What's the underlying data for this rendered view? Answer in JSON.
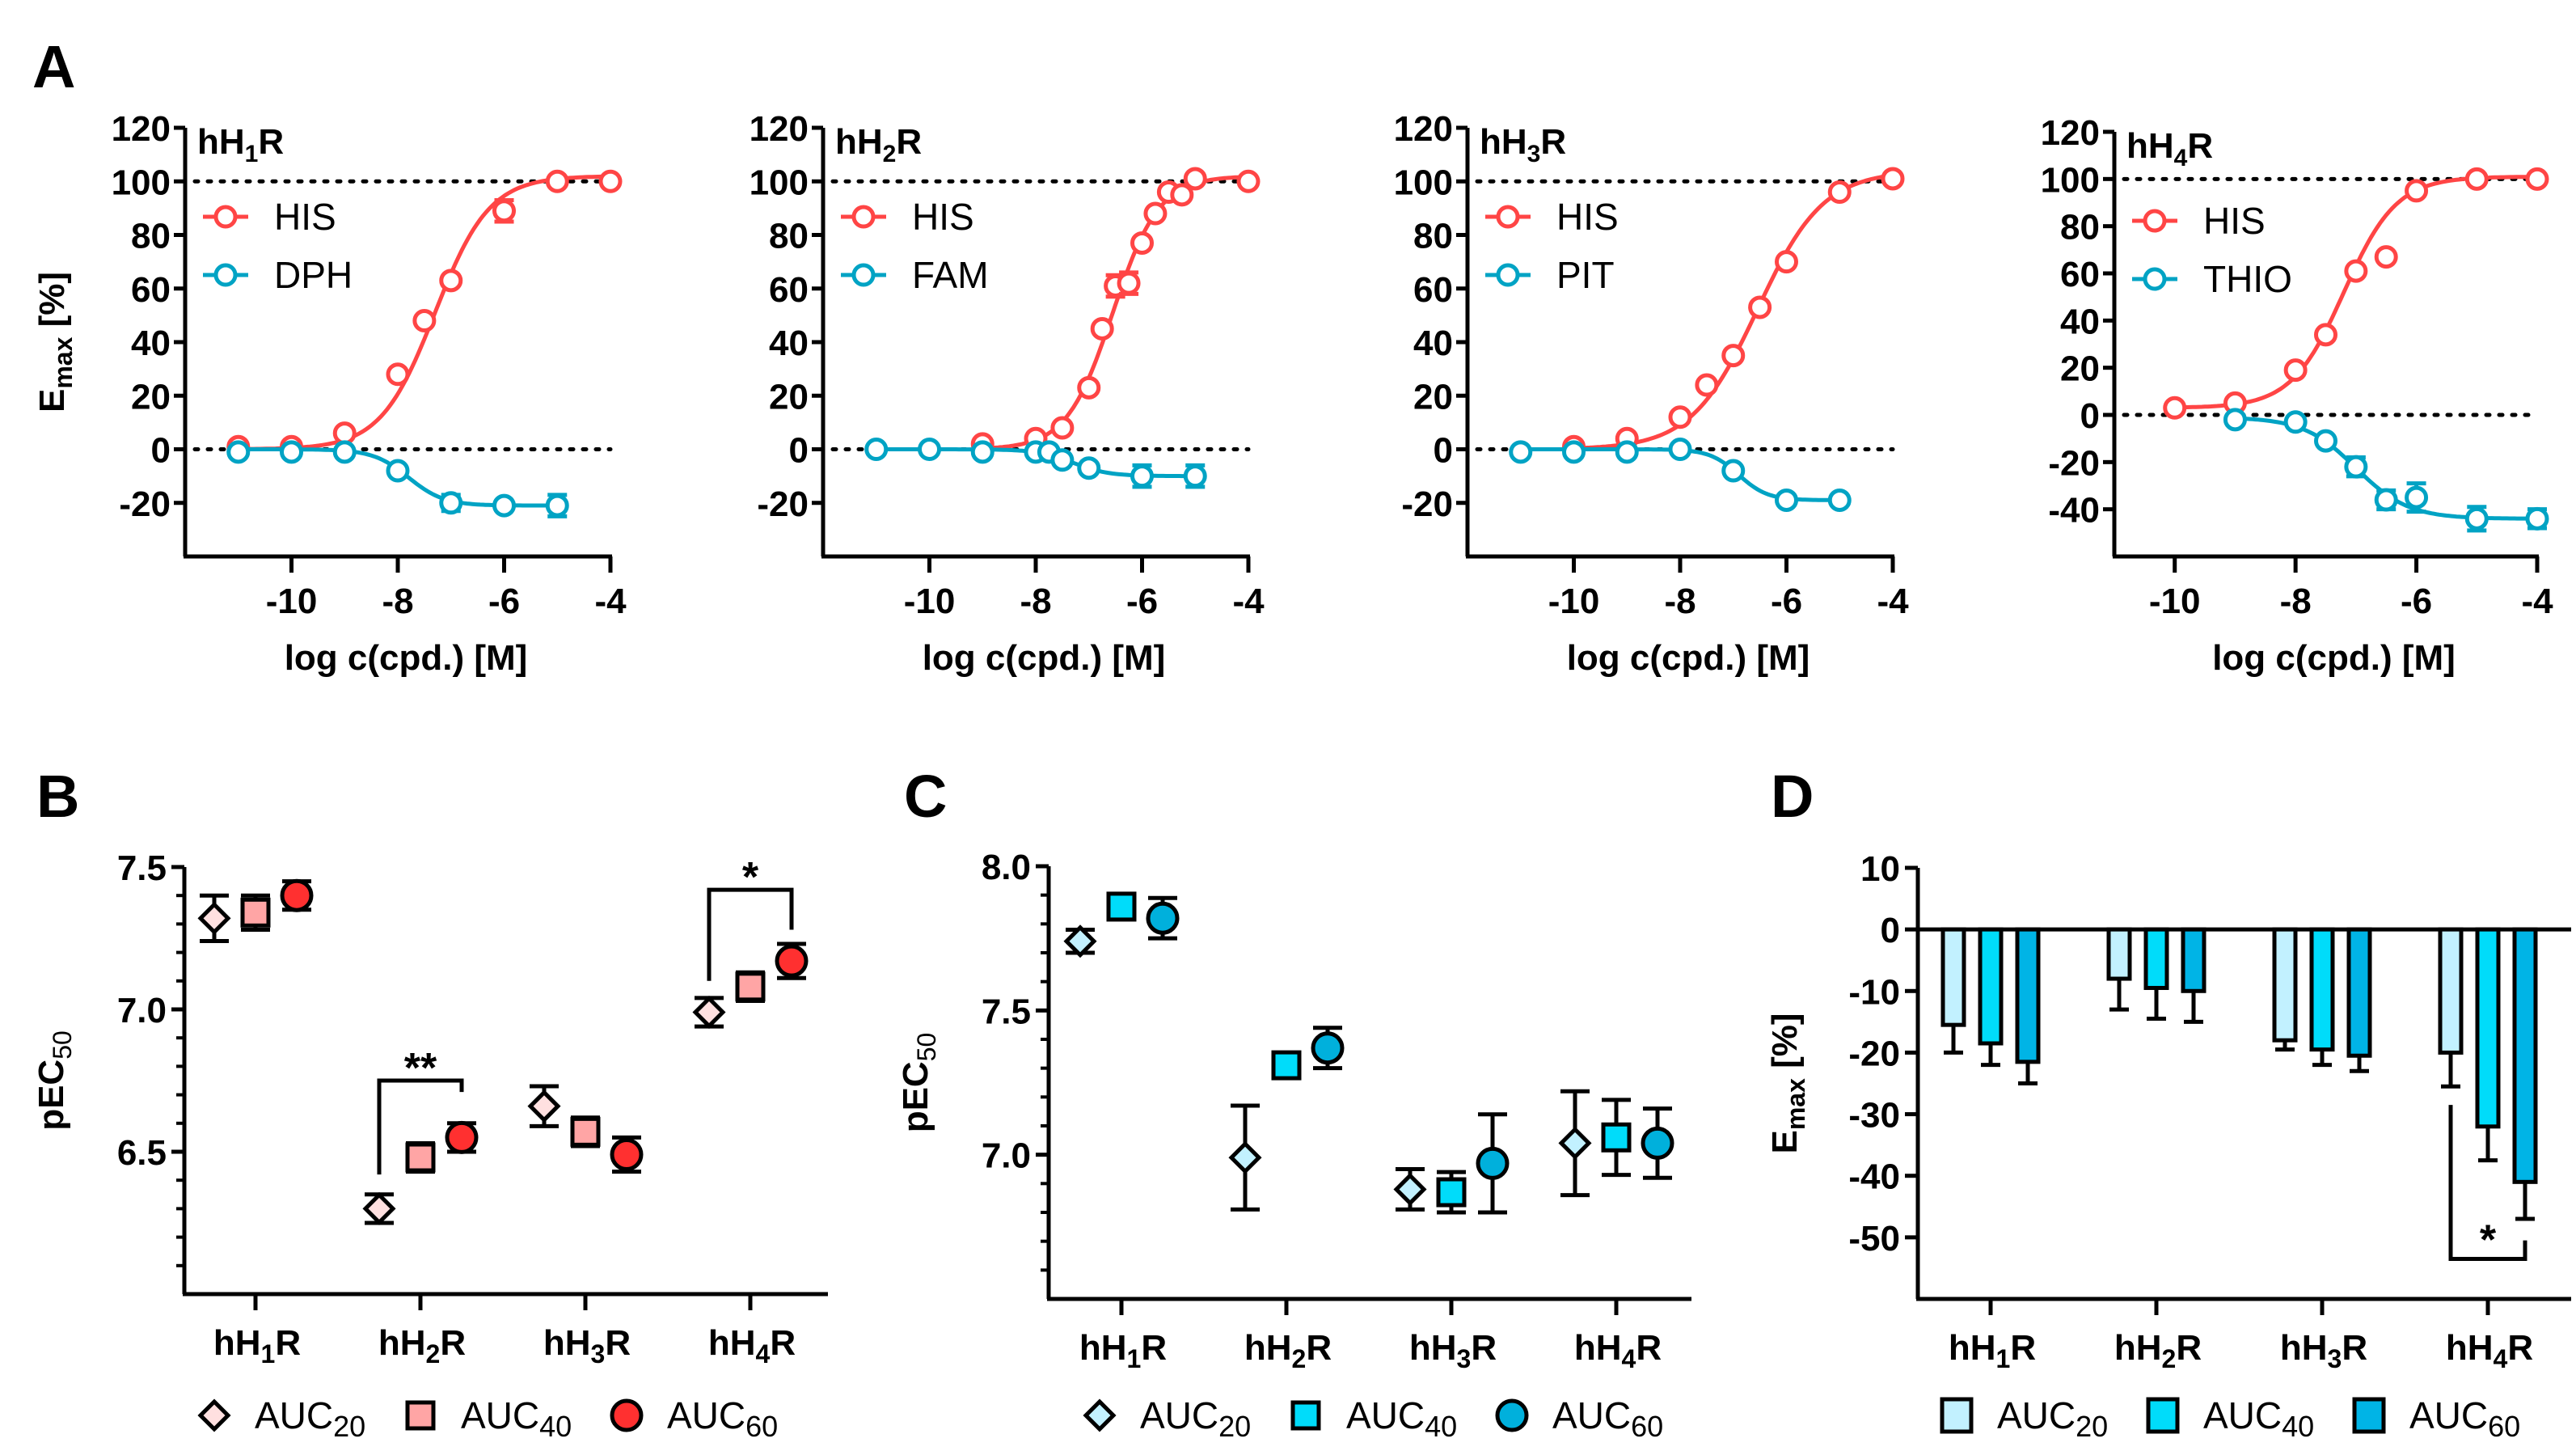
{
  "figure": {
    "panel_letters": [
      "A",
      "B",
      "C",
      "D"
    ]
  },
  "colors": {
    "agonist": "#ff4545",
    "ligand2": "#00a3c4",
    "B_auc20": "#ffe0e0",
    "B_auc40": "#ffa5a5",
    "B_auc60": "#ff3030",
    "C_auc20": "#c2f1ff",
    "C_auc40": "#00dcfa",
    "C_auc60": "#00b0dc",
    "D_auc20": "#c2f1ff",
    "D_auc40": "#00dcfa",
    "D_auc60": "#00b4e6"
  },
  "chart_data": [
    {
      "id": "A1",
      "type": "line",
      "panel": "A",
      "title": "hH1R",
      "title_sub": "1",
      "xlabel": "log c(cpd.) [M]",
      "ylabel": "Emax [%]",
      "xlim": [
        -12,
        -4
      ],
      "ylim": [
        -40,
        120
      ],
      "xticks": [
        -10,
        -8,
        -6,
        -4
      ],
      "yticks": [
        120,
        100,
        80,
        60,
        40,
        20,
        0,
        -20
      ],
      "reference_lines": [
        0,
        100
      ],
      "legend": "top-left",
      "series": [
        {
          "name": "HIS",
          "x": [
            -11,
            -10,
            -9,
            -8,
            -7.5,
            -7,
            -6,
            -5,
            -4
          ],
          "y": [
            1,
            1,
            6,
            28,
            48,
            63,
            89,
            100,
            100
          ],
          "err": [
            0,
            0,
            0,
            0,
            0,
            0,
            4,
            0,
            0
          ],
          "fit": {
            "bottom": 0,
            "top": 102,
            "logec50": -7.3,
            "hill": 0.85
          }
        },
        {
          "name": "DPH",
          "x": [
            -11,
            -10,
            -9,
            -8,
            -7,
            -6,
            -5
          ],
          "y": [
            -1,
            -1,
            -1,
            -8,
            -20,
            -21,
            -21
          ],
          "err": [
            0,
            0,
            0,
            0,
            3,
            0,
            4
          ],
          "fit": {
            "bottom": 0,
            "top": -21,
            "logec50": -7.8,
            "hill": 1.3
          }
        }
      ]
    },
    {
      "id": "A2",
      "type": "line",
      "panel": "A",
      "title": "hH2R",
      "title_sub": "2",
      "xlabel": "log c(cpd.) [M]",
      "ylabel": "",
      "xlim": [
        -12,
        -4
      ],
      "ylim": [
        -40,
        120
      ],
      "xticks": [
        -10,
        -8,
        -6,
        -4
      ],
      "yticks": [
        120,
        100,
        80,
        60,
        40,
        20,
        0,
        -20
      ],
      "reference_lines": [
        0,
        100
      ],
      "legend": "top-left",
      "series": [
        {
          "name": "HIS",
          "x": [
            -9,
            -8,
            -7.5,
            -7,
            -6.75,
            -6.5,
            -6.25,
            -6,
            -5.75,
            -5.5,
            -5.25,
            -5,
            -4
          ],
          "y": [
            2,
            4,
            8,
            23,
            45,
            61,
            62,
            77,
            88,
            96,
            95,
            101,
            100
          ],
          "err": [
            0,
            0,
            0,
            0,
            0,
            4,
            4,
            0,
            0,
            0,
            0,
            0,
            0
          ],
          "fit": {
            "bottom": 0,
            "top": 102,
            "logec50": -6.55,
            "hill": 1.0
          }
        },
        {
          "name": "FAM",
          "x": [
            -11,
            -10,
            -9,
            -8,
            -7.75,
            -7.5,
            -7,
            -6,
            -5
          ],
          "y": [
            0,
            0,
            -1,
            -1,
            -1,
            -4,
            -7,
            -10,
            -10
          ],
          "err": [
            0,
            0,
            0,
            0,
            0,
            0,
            0,
            4,
            4
          ],
          "fit": {
            "bottom": 0,
            "top": -10,
            "logec50": -7.3,
            "hill": 1.3
          }
        }
      ]
    },
    {
      "id": "A3",
      "type": "line",
      "panel": "A",
      "title": "hH3R",
      "title_sub": "3",
      "xlabel": "log c(cpd.) [M]",
      "ylabel": "",
      "xlim": [
        -12,
        -4
      ],
      "ylim": [
        -40,
        120
      ],
      "xticks": [
        -10,
        -8,
        -6,
        -4
      ],
      "yticks": [
        120,
        100,
        80,
        60,
        40,
        20,
        0,
        -20
      ],
      "reference_lines": [
        0,
        100
      ],
      "legend": "top-left",
      "series": [
        {
          "name": "HIS",
          "x": [
            -10,
            -9,
            -8,
            -7.5,
            -7,
            -6.5,
            -6,
            -5,
            -4
          ],
          "y": [
            1,
            4,
            12,
            24,
            35,
            53,
            70,
            96,
            101
          ],
          "err": [
            0,
            0,
            0,
            0,
            0,
            0,
            0,
            0,
            0
          ],
          "fit": {
            "bottom": 0,
            "top": 104,
            "logec50": -6.55,
            "hill": 0.7
          }
        },
        {
          "name": "PIT",
          "x": [
            -11,
            -10,
            -9,
            -8,
            -7,
            -6,
            -5
          ],
          "y": [
            -1,
            -1,
            -1,
            0,
            -8,
            -19,
            -19
          ],
          "err": [
            0,
            0,
            0,
            0,
            0,
            0,
            0
          ],
          "fit": {
            "bottom": 0,
            "top": -19,
            "logec50": -6.9,
            "hill": 1.6
          }
        }
      ]
    },
    {
      "id": "A4",
      "type": "line",
      "panel": "A",
      "title": "hH4R",
      "title_sub": "4",
      "xlabel": "log c(cpd.) [M]",
      "ylabel": "",
      "xlim": [
        -11,
        -4
      ],
      "ylim": [
        -60,
        120
      ],
      "xticks": [
        -10,
        -8,
        -6,
        -4
      ],
      "yticks": [
        120,
        100,
        80,
        60,
        40,
        20,
        0,
        -20,
        -40
      ],
      "reference_lines": [
        0,
        100
      ],
      "legend": "top-left",
      "series": [
        {
          "name": "HIS",
          "x": [
            -10,
            -9,
            -8,
            -7.5,
            -7,
            -6.5,
            -6,
            -5,
            -4
          ],
          "y": [
            3,
            5,
            19,
            34,
            61,
            67,
            95,
            100,
            100
          ],
          "err": [
            0,
            0,
            0,
            0,
            0,
            0,
            0,
            0,
            0
          ],
          "fit": {
            "bottom": 3,
            "top": 101,
            "logec50": -7.2,
            "hill": 1.0
          }
        },
        {
          "name": "THIO",
          "x": [
            -9,
            -8,
            -7.5,
            -7,
            -6.5,
            -6,
            -5,
            -4
          ],
          "y": [
            -2,
            -3,
            -11,
            -22,
            -36,
            -35,
            -44,
            -44
          ],
          "err": [
            0,
            0,
            0,
            4,
            4,
            6,
            5,
            4
          ],
          "fit": {
            "bottom": -1,
            "top": -44,
            "logec50": -7.0,
            "hill": 1.0
          }
        }
      ]
    },
    {
      "id": "B",
      "type": "scatter",
      "panel": "B",
      "categories": [
        "hH1R",
        "hH2R",
        "hH3R",
        "hH4R"
      ],
      "category_subs": [
        "1",
        "2",
        "3",
        "4"
      ],
      "ylabel": "pEC50",
      "ylim": [
        6.0,
        7.5
      ],
      "yticks": [
        7.5,
        7.0,
        6.5
      ],
      "minor_tick_step": 0.1,
      "legend": "bottom",
      "series": [
        {
          "name": "AUC20",
          "marker": "diamond",
          "values": [
            7.32,
            6.3,
            6.66,
            6.99
          ],
          "err": [
            0.08,
            0.05,
            0.07,
            0.05
          ]
        },
        {
          "name": "AUC40",
          "marker": "square",
          "values": [
            7.34,
            6.48,
            6.57,
            7.08
          ],
          "err": [
            0.06,
            0.05,
            0.05,
            0.05
          ]
        },
        {
          "name": "AUC60",
          "marker": "circle",
          "values": [
            7.4,
            6.55,
            6.49,
            7.17
          ],
          "err": [
            0.05,
            0.05,
            0.06,
            0.06
          ]
        }
      ],
      "annotations": [
        {
          "text": "**",
          "category": 1,
          "from_series": 0,
          "to_series": 2,
          "bracket_y": 6.75,
          "left_end": 6.42,
          "right_end": 6.71
        },
        {
          "text": "*",
          "category": 3,
          "from_series": 0,
          "to_series": 2,
          "bracket_y": 7.42,
          "left_end": 7.1,
          "right_end": 7.28
        }
      ]
    },
    {
      "id": "C",
      "type": "scatter",
      "panel": "C",
      "categories": [
        "hH1R",
        "hH2R",
        "hH3R",
        "hH4R"
      ],
      "category_subs": [
        "1",
        "2",
        "3",
        "4"
      ],
      "ylabel": "pEC50",
      "ylim": [
        6.5,
        8.0
      ],
      "yticks": [
        8.0,
        7.5,
        7.0
      ],
      "minor_tick_step": 0.1,
      "legend": "bottom",
      "series": [
        {
          "name": "AUC20",
          "marker": "diamond",
          "values": [
            7.74,
            6.99,
            6.88,
            7.04
          ],
          "err": [
            0.04,
            0.18,
            0.07,
            0.18
          ]
        },
        {
          "name": "AUC40",
          "marker": "square",
          "values": [
            7.86,
            7.31,
            6.87,
            7.06
          ],
          "err": [
            0.02,
            0.02,
            0.07,
            0.13
          ]
        },
        {
          "name": "AUC60",
          "marker": "circle",
          "values": [
            7.82,
            7.37,
            6.97,
            7.04
          ],
          "err": [
            0.07,
            0.07,
            0.17,
            0.12
          ]
        }
      ],
      "annotations": []
    },
    {
      "id": "D",
      "type": "bar",
      "panel": "D",
      "categories": [
        "hH1R",
        "hH2R",
        "hH3R",
        "hH4R"
      ],
      "category_subs": [
        "1",
        "2",
        "3",
        "4"
      ],
      "ylabel": "Emax [%]",
      "ylim": [
        -60,
        10
      ],
      "yticks": [
        10,
        0,
        -10,
        -20,
        -30,
        -40,
        -50
      ],
      "legend": "bottom",
      "series": [
        {
          "name": "AUC20",
          "values": [
            -15.5,
            -8,
            -18,
            -20
          ],
          "err": [
            4.5,
            5,
            1.5,
            5.5
          ]
        },
        {
          "name": "AUC40",
          "values": [
            -18.5,
            -9.5,
            -19.5,
            -32
          ],
          "err": [
            3.5,
            5,
            2.5,
            5.5
          ]
        },
        {
          "name": "AUC60",
          "values": [
            -21.5,
            -10,
            -20.5,
            -41
          ],
          "err": [
            3.5,
            5,
            2.5,
            6
          ]
        }
      ],
      "annotations": [
        {
          "text": "*",
          "category": 3,
          "from_series": 0,
          "to_series": 2,
          "bracket_y": -53.5,
          "left_end": -28.5,
          "right_end": -50.5
        }
      ]
    }
  ],
  "legend_labels": {
    "auc_base": "AUC",
    "auc_subs": [
      "20",
      "40",
      "60"
    ]
  },
  "labels": {
    "receptor_prefix": "hH",
    "receptor_suffix": "R",
    "emax_main": "E",
    "emax_sub": "max",
    "emax_unit": " [%]",
    "pec_main": "pEC",
    "pec_sub": "50"
  }
}
